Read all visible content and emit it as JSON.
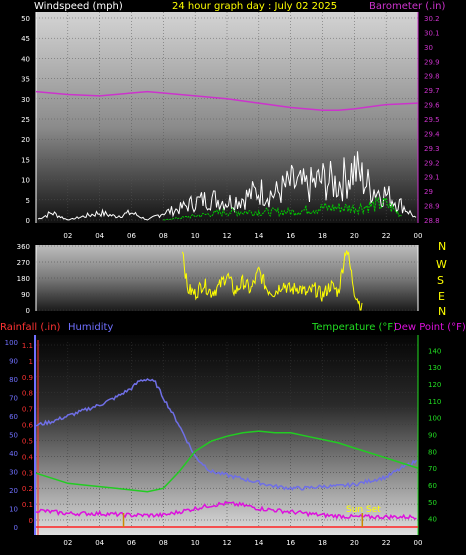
{
  "header": {
    "left_label": "Windspeed (mph)",
    "title": "24 hour graph day : July 02 2025",
    "right_label": "Barometer (.in)"
  },
  "colors": {
    "wind": "#ffffff",
    "gust": "#00cc00",
    "barometer": "#cc33cc",
    "direction": "#ffff00",
    "humidity": "#6f6fe6",
    "temperature": "#22cc22",
    "dewpoint": "#dd11dd",
    "rainfall": "#ff2222",
    "left_axis_red": "#ff3333",
    "left_axis_blue": "#7070ff",
    "right_axis_green": "#22dd22",
    "sunset_mark": "#cc8800"
  },
  "middle": {
    "compass": [
      "N",
      "W",
      "S",
      "E",
      "N"
    ]
  },
  "bottom": {
    "rainfall_label": "Rainfall (.in)",
    "humidity_label": "Humidity",
    "temperature_label": "Temperature (°F)",
    "dewpoint_label": "Dew Point (°F)",
    "sunset_label": "Sun Set"
  },
  "chart_data": [
    {
      "type": "line",
      "name": "wind-panel",
      "x_ticks": [
        "02",
        "04",
        "06",
        "08",
        "10",
        "12",
        "14",
        "16",
        "18",
        "20",
        "22",
        "00"
      ],
      "ylim_left": [
        0,
        50
      ],
      "y_ticks_left": [
        0,
        5,
        10,
        15,
        20,
        25,
        30,
        35,
        40,
        45,
        50
      ],
      "ylim_right": [
        28.8,
        30.2
      ],
      "y_ticks_right": [
        "28.8",
        "28.9",
        "29",
        "29.1",
        "29.2",
        "29.3",
        "29.4",
        "29.5",
        "29.6",
        "29.7",
        "29.8",
        "29.9",
        "30",
        "30.1",
        "30.2"
      ],
      "barometer": {
        "x": [
          0,
          2,
          4,
          6,
          7,
          8,
          10,
          12,
          14,
          16,
          18,
          19,
          20,
          22,
          24
        ],
        "y": [
          29.69,
          29.67,
          29.66,
          29.68,
          29.69,
          29.68,
          29.66,
          29.64,
          29.61,
          29.58,
          29.56,
          29.56,
          29.57,
          29.6,
          29.61
        ]
      },
      "windspeed": {
        "x": [
          0,
          1,
          2,
          3,
          4,
          5,
          6,
          7,
          8,
          9,
          10,
          11,
          12,
          13,
          14,
          15,
          16,
          17,
          18,
          19,
          20,
          21,
          22,
          23,
          24
        ],
        "y": [
          0,
          2,
          0,
          1,
          2,
          1,
          2,
          0,
          2,
          3,
          5,
          6,
          5,
          6,
          8,
          7,
          10,
          9,
          11,
          10,
          14,
          9,
          7,
          4,
          0
        ]
      },
      "gust": {
        "x": [
          8,
          10,
          12,
          14,
          16,
          18,
          20,
          22,
          23
        ],
        "y": [
          0,
          1,
          2,
          2,
          2,
          3,
          3,
          4,
          1
        ]
      }
    },
    {
      "type": "line",
      "name": "wind-direction-panel",
      "ylim": [
        0,
        360
      ],
      "y_ticks": [
        0,
        90,
        180,
        270,
        360
      ],
      "direction": {
        "x": [
          9.2,
          9.5,
          10,
          10.5,
          11,
          11.5,
          12,
          12.5,
          13,
          13.5,
          14,
          14.5,
          15,
          15.5,
          16,
          16.5,
          17,
          17.5,
          18,
          18.5,
          19,
          19.5,
          20,
          20.5
        ],
        "y": [
          360,
          120,
          90,
          150,
          100,
          130,
          200,
          100,
          160,
          110,
          220,
          120,
          100,
          150,
          110,
          130,
          90,
          120,
          80,
          140,
          100,
          360,
          110,
          0
        ]
      }
    },
    {
      "type": "line",
      "name": "rain-humidity-temperature-panel",
      "y_ticks_left_outer": [
        0,
        10,
        20,
        30,
        40,
        50,
        60,
        70,
        80,
        90,
        100
      ],
      "y_ticks_left_inner": [
        "0",
        "0.1",
        "0.2",
        "0.3",
        "0.4",
        "0.5",
        "0.6",
        "0.7",
        "0.8",
        "0.9",
        "1",
        "1.1"
      ],
      "y_ticks_right": [
        40,
        50,
        60,
        70,
        80,
        90,
        100,
        110,
        120,
        130,
        140
      ],
      "humidity": {
        "x": [
          0,
          1,
          2,
          3,
          4,
          5,
          6,
          6.5,
          7,
          7.5,
          8,
          9,
          10,
          11,
          12,
          13,
          14,
          15,
          16,
          17,
          18,
          19,
          20,
          21,
          22,
          23,
          24
        ],
        "y": [
          55,
          57,
          60,
          63,
          66,
          70,
          75,
          79,
          80,
          78,
          70,
          55,
          38,
          30,
          28,
          26,
          24,
          22,
          21,
          21,
          22,
          22,
          23,
          25,
          27,
          32,
          36
        ]
      },
      "temperature": {
        "x": [
          0,
          1,
          2,
          3,
          4,
          5,
          6,
          7,
          8,
          9,
          10,
          11,
          12,
          13,
          14,
          15,
          16,
          17,
          18,
          19,
          20,
          21,
          22,
          23,
          24
        ],
        "y": [
          67,
          64,
          61,
          60,
          59,
          58,
          57,
          56,
          58,
          68,
          80,
          86,
          89,
          91,
          92,
          91,
          91,
          89,
          87,
          85,
          82,
          79,
          76,
          73,
          70
        ]
      },
      "dewpoint": {
        "x": [
          0,
          2,
          4,
          6,
          8,
          10,
          11,
          12,
          13,
          14,
          16,
          18,
          20,
          22,
          24
        ],
        "y": [
          45,
          43,
          43,
          42,
          42,
          46,
          48,
          49,
          48,
          46,
          44,
          42,
          41,
          41,
          41
        ]
      },
      "rainfall": {
        "x": [
          0,
          24
        ],
        "y": [
          0,
          0
        ]
      },
      "sunset_hour": 20.5,
      "mark_hour": 5.5
    }
  ]
}
